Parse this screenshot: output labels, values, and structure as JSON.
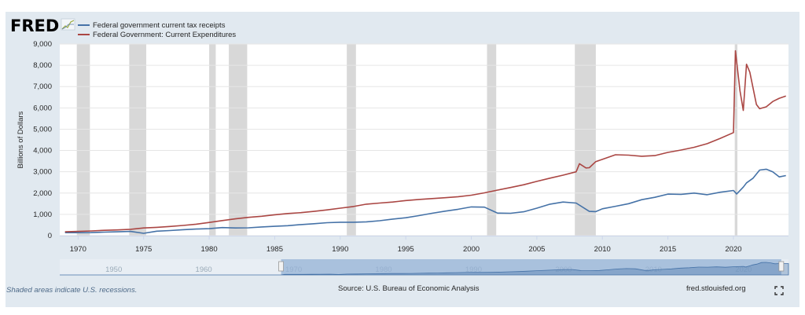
{
  "logo": {
    "text": "FRED"
  },
  "footer": {
    "recession_note": "Shaded areas indicate U.S. recessions.",
    "source": "Source: U.S. Bureau of Economic Analysis",
    "url": "fred.stlouisfed.org",
    "fullscreen_icon": "expand-icon"
  },
  "colors": {
    "receipts": "#4572a7",
    "expenditures": "#aa4643",
    "recession": "#c8c8c8",
    "navigator": "#94b2d6"
  },
  "chart_data": {
    "type": "line",
    "ylabel": "Billions of Dollars",
    "xlabel": "",
    "ylim": [
      0,
      9000
    ],
    "xlim": [
      1968.6,
      2024.2
    ],
    "yticks": [
      0,
      1000,
      2000,
      3000,
      4000,
      5000,
      6000,
      7000,
      8000,
      9000
    ],
    "ytick_labels": [
      "0",
      "1,000",
      "2,000",
      "3,000",
      "4,000",
      "5,000",
      "6,000",
      "7,000",
      "8,000",
      "9,000"
    ],
    "xticks": [
      1970,
      1975,
      1980,
      1985,
      1990,
      1995,
      2000,
      2005,
      2010,
      2015,
      2020
    ],
    "xtick_labels": [
      "1970",
      "1975",
      "1980",
      "1985",
      "1990",
      "1995",
      "2000",
      "2005",
      "2010",
      "2015",
      "2020"
    ],
    "grid": true,
    "legend_position": "top-left",
    "recessions": [
      [
        1969.9,
        1970.9
      ],
      [
        1973.9,
        1975.2
      ],
      [
        1980.0,
        1980.5
      ],
      [
        1981.5,
        1982.9
      ],
      [
        1990.5,
        1991.2
      ],
      [
        2001.2,
        2001.9
      ],
      [
        2007.9,
        2009.5
      ],
      [
        2020.1,
        2020.3
      ]
    ],
    "navigator": {
      "tick_labels": [
        "1950",
        "1960",
        "1970",
        "1980",
        "1990",
        "2000",
        "2010",
        "2020"
      ],
      "tick_years": [
        1950,
        1960,
        1970,
        1980,
        1990,
        2000,
        2010,
        2020
      ],
      "range": [
        1944,
        2025
      ],
      "selected": [
        1968.6,
        2024.2
      ]
    },
    "series": [
      {
        "name": "Federal government current tax receipts",
        "x": [
          1969,
          1970,
          1971,
          1972,
          1973,
          1974,
          1975,
          1976,
          1977,
          1978,
          1979,
          1980,
          1981,
          1982,
          1983,
          1984,
          1985,
          1986,
          1987,
          1988,
          1989,
          1990,
          1991,
          1992,
          1993,
          1994,
          1995,
          1996,
          1997,
          1998,
          1999,
          2000,
          2001,
          2001.75,
          2002,
          2003,
          2004,
          2005,
          2006,
          2007,
          2008,
          2009,
          2009.5,
          2010,
          2011,
          2012,
          2013,
          2014,
          2015,
          2016,
          2017,
          2018,
          2019,
          2020,
          2020.25,
          2020.75,
          2021,
          2021.5,
          2022,
          2022.5,
          2023,
          2023.5,
          2024
        ],
        "values": [
          140,
          140,
          145,
          165,
          180,
          200,
          110,
          210,
          240,
          280,
          310,
          330,
          380,
          360,
          370,
          410,
          440,
          470,
          520,
          560,
          610,
          630,
          630,
          650,
          700,
          780,
          840,
          940,
          1050,
          1150,
          1240,
          1350,
          1340,
          1130,
          1060,
          1050,
          1120,
          1290,
          1480,
          1580,
          1530,
          1140,
          1130,
          1260,
          1380,
          1500,
          1690,
          1800,
          1950,
          1940,
          2000,
          1920,
          2040,
          2120,
          1960,
          2280,
          2480,
          2700,
          3080,
          3120,
          3000,
          2760,
          2820
        ]
      },
      {
        "name": "Federal Government: Current Expenditures",
        "x": [
          1969,
          1970,
          1971,
          1972,
          1973,
          1974,
          1975,
          1976,
          1977,
          1978,
          1979,
          1980,
          1981,
          1982,
          1983,
          1984,
          1985,
          1986,
          1987,
          1988,
          1989,
          1990,
          1991,
          1992,
          1993,
          1994,
          1995,
          1996,
          1997,
          1998,
          1999,
          2000,
          2001,
          2002,
          2003,
          2004,
          2005,
          2006,
          2007,
          2008,
          2008.25,
          2008.75,
          2009,
          2009.5,
          2010,
          2011,
          2012,
          2013,
          2014,
          2015,
          2016,
          2017,
          2018,
          2019,
          2020,
          2020.15,
          2020.5,
          2020.75,
          2021,
          2021.25,
          2021.75,
          2022,
          2022.5,
          2023,
          2023.5,
          2024
        ],
        "values": [
          180,
          200,
          220,
          250,
          270,
          300,
          360,
          390,
          430,
          480,
          540,
          620,
          710,
          790,
          860,
          910,
          980,
          1040,
          1080,
          1140,
          1210,
          1290,
          1370,
          1480,
          1530,
          1580,
          1650,
          1700,
          1740,
          1780,
          1830,
          1900,
          2010,
          2140,
          2260,
          2390,
          2550,
          2700,
          2840,
          3000,
          3380,
          3180,
          3190,
          3480,
          3580,
          3800,
          3780,
          3730,
          3760,
          3910,
          4020,
          4150,
          4320,
          4570,
          4840,
          8680,
          6800,
          5880,
          8050,
          7680,
          6160,
          5960,
          6050,
          6300,
          6450,
          6560
        ]
      }
    ]
  }
}
